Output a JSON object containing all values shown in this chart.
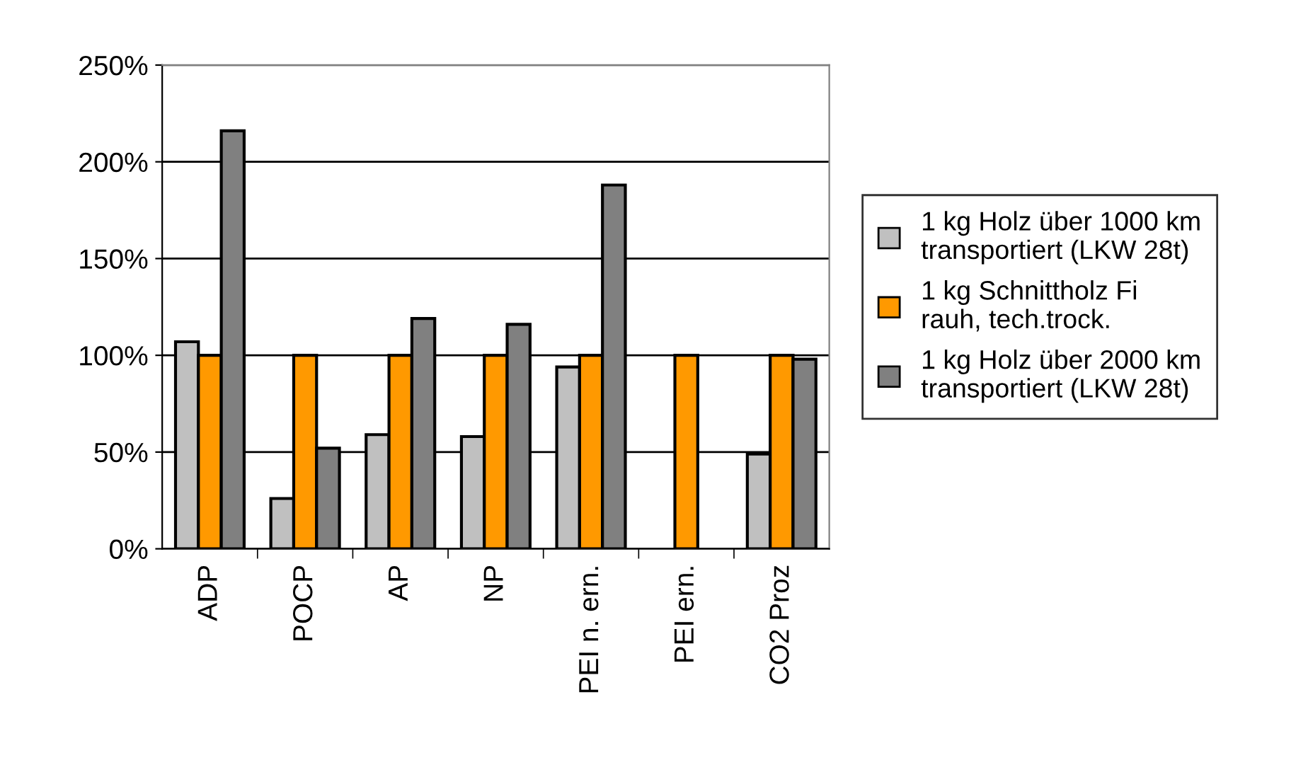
{
  "chart_data": {
    "type": "bar",
    "categories": [
      "ADP",
      "POCP",
      "AP",
      "NP",
      "PEI n. ern.",
      "PEI ern.",
      "CO2 Proz"
    ],
    "series": [
      {
        "name": "1 kg Holz über 1000 km transportiert (LKW 28t)",
        "color": "#c0c0c0",
        "values": [
          107,
          26,
          59,
          58,
          94,
          null,
          49
        ]
      },
      {
        "name": "1 kg Schnittholz Fi rauh, tech.trock.",
        "color": "#ff9900",
        "values": [
          100,
          100,
          100,
          100,
          100,
          100,
          100
        ]
      },
      {
        "name": "1 kg Holz über 2000 km transportiert (LKW 28t)",
        "color": "#808080",
        "values": [
          216,
          52,
          119,
          116,
          188,
          null,
          98
        ]
      }
    ],
    "ylim": [
      0,
      250
    ],
    "yticks": [
      {
        "value": 0,
        "label": "0%"
      },
      {
        "value": 50,
        "label": "50%"
      },
      {
        "value": 100,
        "label": "100%"
      },
      {
        "value": 150,
        "label": "150%"
      },
      {
        "value": 200,
        "label": "200%"
      },
      {
        "value": 250,
        "label": "250%"
      }
    ],
    "grid": "y",
    "legend": "right"
  }
}
